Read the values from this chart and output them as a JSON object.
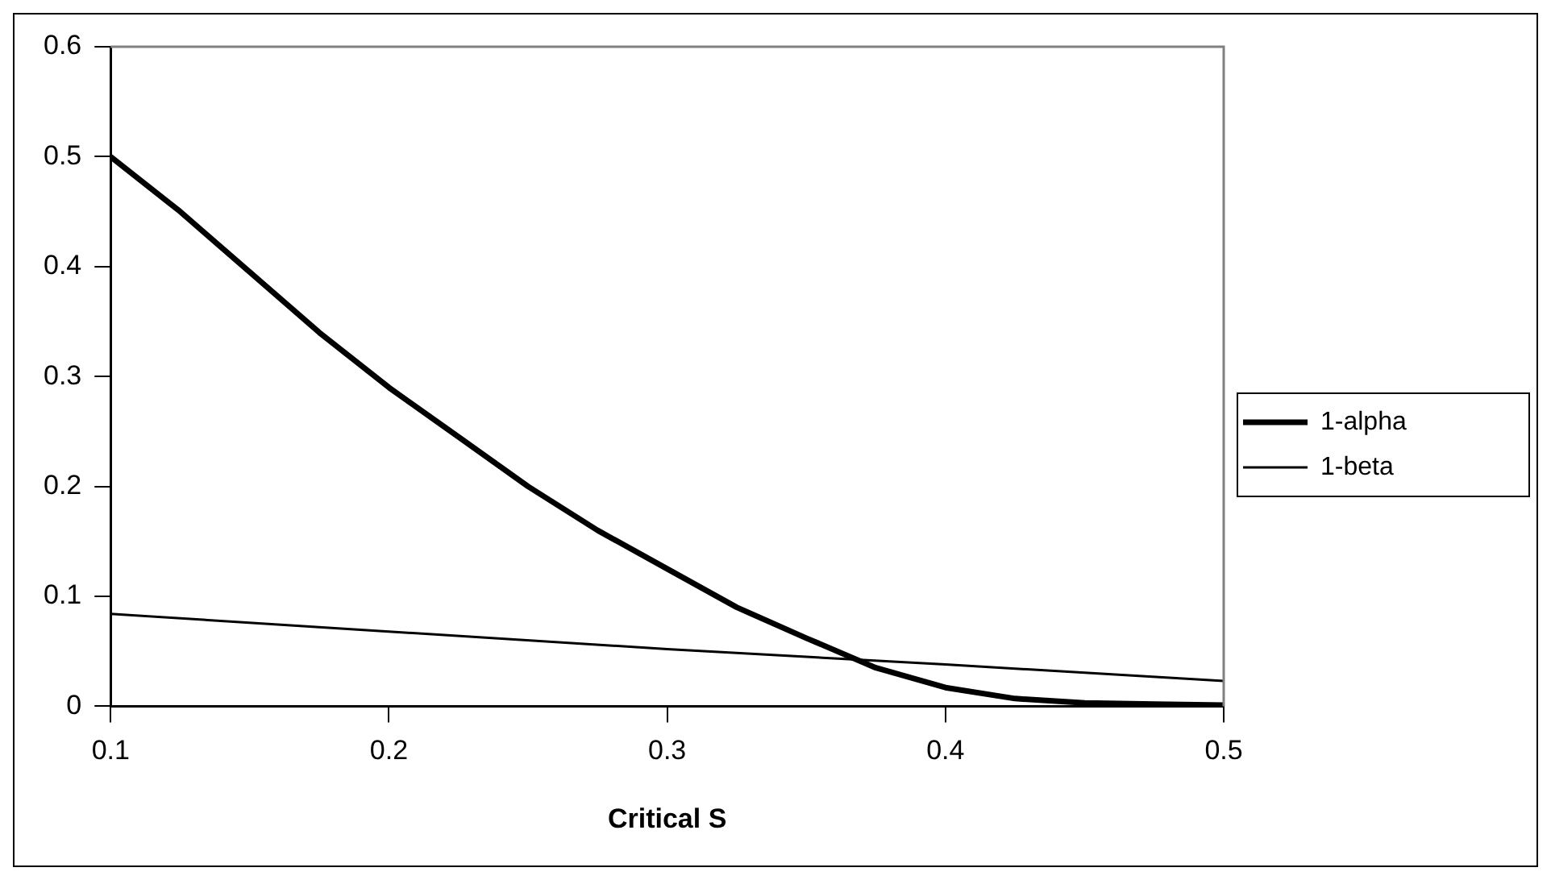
{
  "chart_data": {
    "type": "line",
    "xlabel": "Critical S",
    "xlim": [
      0.1,
      0.5
    ],
    "xticks": [
      0.1,
      0.2,
      0.3,
      0.4,
      0.5
    ],
    "ylim": [
      0,
      0.6
    ],
    "yticks": [
      0,
      0.1,
      0.2,
      0.3,
      0.4,
      0.5,
      0.6
    ],
    "grid": false,
    "legend": "right",
    "marker": "none",
    "line_style": "solid",
    "series": [
      {
        "name": "1-alpha",
        "color": "#000000",
        "x": [
          0.1,
          0.125,
          0.15,
          0.175,
          0.2,
          0.225,
          0.25,
          0.275,
          0.3,
          0.325,
          0.35,
          0.375,
          0.4,
          0.425,
          0.45,
          0.475,
          0.5
        ],
        "values": [
          0.5,
          0.45,
          0.395,
          0.34,
          0.29,
          0.245,
          0.2,
          0.16,
          0.125,
          0.09,
          0.062,
          0.035,
          0.017,
          0.007,
          0.003,
          0.002,
          0.001
        ]
      },
      {
        "name": "1-beta",
        "color": "#000000",
        "x": [
          0.1,
          0.2,
          0.3,
          0.4,
          0.5
        ],
        "values": [
          0.084,
          0.068,
          0.052,
          0.038,
          0.023
        ]
      }
    ]
  }
}
